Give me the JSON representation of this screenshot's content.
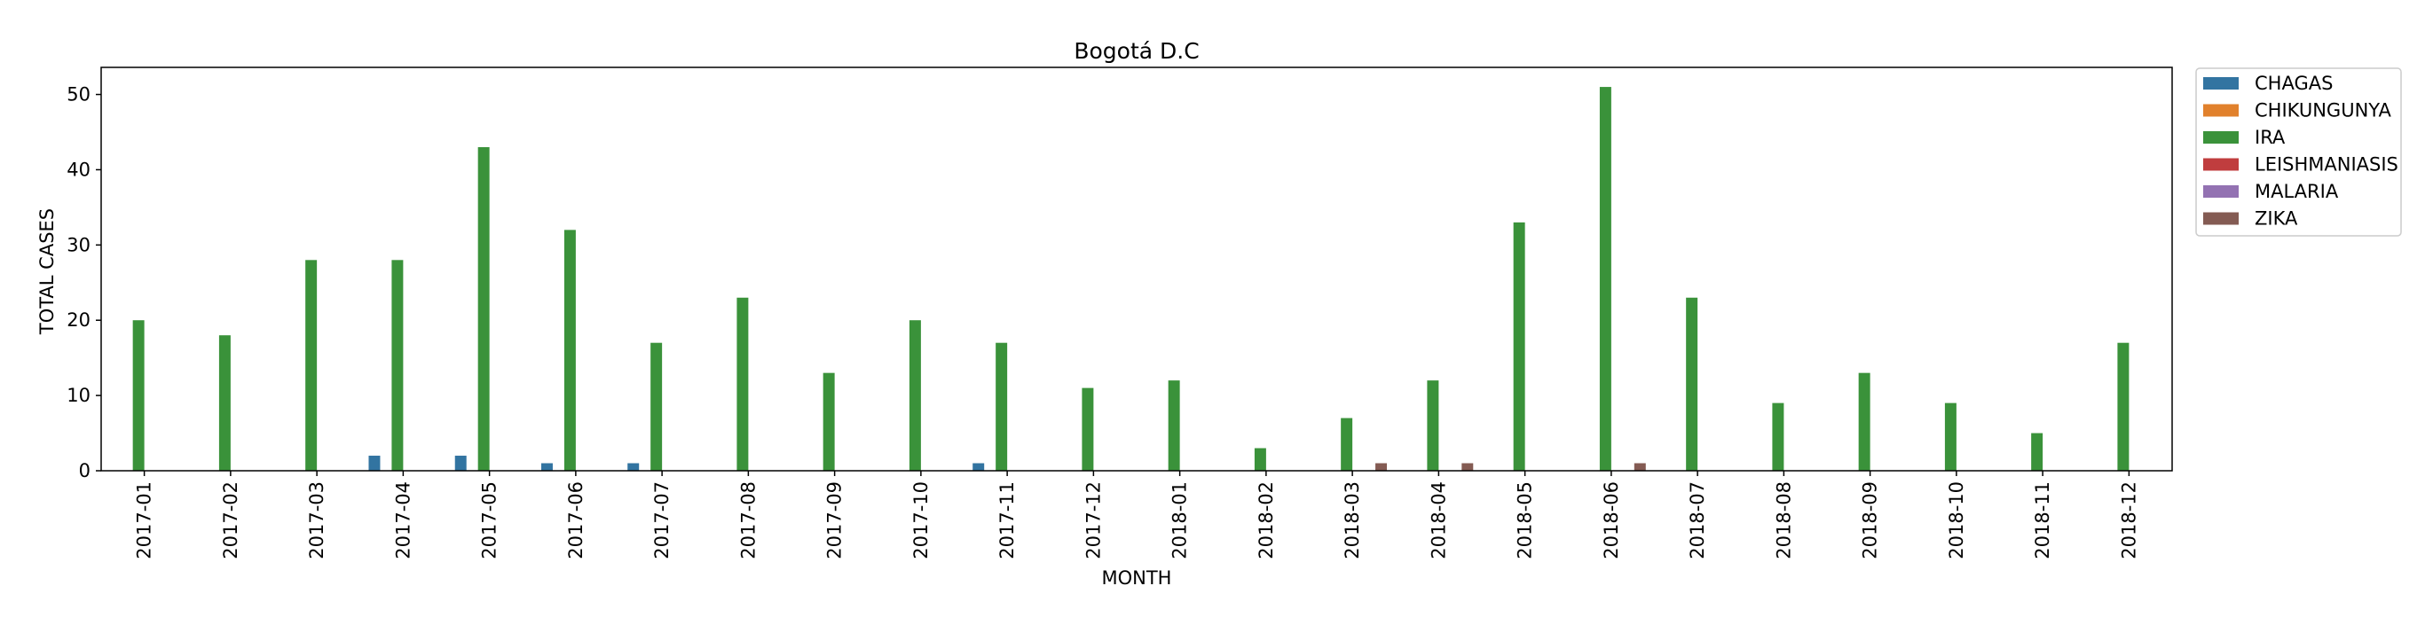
{
  "chart_data": {
    "type": "bar",
    "title": "Bogotá D.C",
    "xlabel": "MONTH",
    "ylabel": "TOTAL CASES",
    "ylim": [
      0,
      53.6
    ],
    "yticks": [
      0,
      10,
      20,
      30,
      40,
      50
    ],
    "grid": false,
    "legend_position": "outside-top-right",
    "categories": [
      "2017-01",
      "2017-02",
      "2017-03",
      "2017-04",
      "2017-05",
      "2017-06",
      "2017-07",
      "2017-08",
      "2017-09",
      "2017-10",
      "2017-11",
      "2017-12",
      "2018-01",
      "2018-02",
      "2018-03",
      "2018-04",
      "2018-05",
      "2018-06",
      "2018-07",
      "2018-08",
      "2018-09",
      "2018-10",
      "2018-11",
      "2018-12"
    ],
    "series": [
      {
        "name": "CHAGAS",
        "color": "#3274a1",
        "values": [
          0,
          0,
          0,
          2,
          2,
          1,
          1,
          0,
          0,
          0,
          1,
          0,
          0,
          0,
          0,
          0,
          0,
          0,
          0,
          0,
          0,
          0,
          0,
          0
        ]
      },
      {
        "name": "CHIKUNGUNYA",
        "color": "#e1812c",
        "values": [
          0,
          0,
          0,
          0,
          0,
          0,
          0,
          0,
          0,
          0,
          0,
          0,
          0,
          0,
          0,
          0,
          0,
          0,
          0,
          0,
          0,
          0,
          0,
          0
        ]
      },
      {
        "name": "IRA",
        "color": "#3a923a",
        "values": [
          20,
          18,
          28,
          28,
          43,
          32,
          17,
          23,
          13,
          20,
          17,
          11,
          12,
          3,
          7,
          12,
          33,
          51,
          23,
          9,
          13,
          9,
          5,
          17
        ]
      },
      {
        "name": "LEISHMANIASIS",
        "color": "#c03d3e",
        "values": [
          0,
          0,
          0,
          0,
          0,
          0,
          0,
          0,
          0,
          0,
          0,
          0,
          0,
          0,
          0,
          0,
          0,
          0,
          0,
          0,
          0,
          0,
          0,
          0
        ]
      },
      {
        "name": "MALARIA",
        "color": "#9372b2",
        "values": [
          0,
          0,
          0,
          0,
          0,
          0,
          0,
          0,
          0,
          0,
          0,
          0,
          0,
          0,
          0,
          0,
          0,
          0,
          0,
          0,
          0,
          0,
          0,
          0
        ]
      },
      {
        "name": "ZIKA",
        "color": "#845b53",
        "values": [
          0,
          0,
          0,
          0,
          0,
          0,
          0,
          0,
          0,
          0,
          0,
          0,
          0,
          0,
          1,
          1,
          0,
          1,
          0,
          0,
          0,
          0,
          0,
          0
        ]
      }
    ]
  }
}
